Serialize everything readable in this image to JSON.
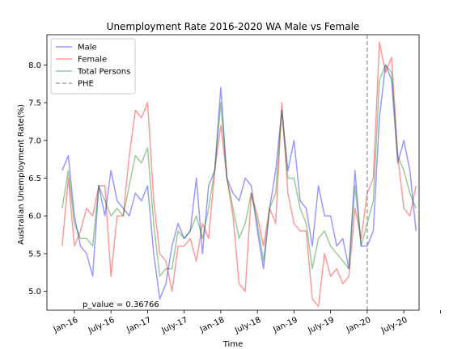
{
  "chart_data": {
    "type": "line",
    "title": "Unemployment Rate 2016-2020 WA Male vs Female",
    "xlabel": "Time",
    "ylabel": "Australian Unemployment Rate(%)",
    "x_tick_labels": [
      "Jan-16",
      "July-16",
      "Jan-17",
      "July-17",
      "Jan-18",
      "July-18",
      "Jan-19",
      "July-19",
      "Jan-20",
      "July-20"
    ],
    "x_start": "2015-11",
    "ylim": [
      4.75,
      8.4
    ],
    "yticks": [
      5.0,
      5.5,
      6.0,
      6.5,
      7.0,
      7.5,
      8.0
    ],
    "grid": false,
    "legend_position": "top-left",
    "series": [
      {
        "name": "Male",
        "color": "#0000ff",
        "values": [
          6.6,
          6.8,
          6.0,
          5.6,
          5.5,
          5.2,
          6.4,
          6.0,
          6.6,
          6.2,
          6.1,
          6.0,
          6.3,
          6.2,
          6.4,
          5.5,
          4.9,
          5.1,
          5.6,
          5.9,
          5.7,
          5.8,
          6.5,
          5.5,
          6.4,
          6.6,
          7.7,
          6.5,
          6.3,
          6.2,
          6.5,
          6.4,
          5.8,
          5.3,
          6.1,
          6.6,
          7.4,
          6.6,
          7.0,
          6.2,
          6.1,
          5.6,
          6.4,
          6.0,
          6.0,
          5.6,
          5.7,
          5.3,
          6.6,
          5.6,
          5.6,
          5.8,
          7.3,
          8.0,
          7.8,
          6.7,
          7.0,
          6.6,
          5.8
        ]
      },
      {
        "name": "Female",
        "color": "#ff0000",
        "values": [
          5.6,
          6.5,
          5.6,
          5.8,
          6.1,
          6.0,
          6.4,
          6.4,
          5.2,
          6.0,
          6.0,
          6.8,
          7.4,
          7.3,
          7.5,
          6.2,
          5.5,
          5.4,
          5.0,
          5.6,
          5.6,
          5.7,
          5.4,
          5.9,
          5.7,
          6.6,
          7.2,
          6.5,
          6.0,
          5.1,
          5.0,
          6.3,
          6.0,
          5.6,
          6.1,
          5.9,
          7.5,
          6.3,
          5.9,
          5.8,
          5.8,
          4.9,
          4.8,
          5.5,
          5.2,
          5.3,
          5.1,
          5.2,
          6.1,
          5.7,
          6.3,
          6.5,
          8.3,
          7.9,
          8.1,
          6.8,
          6.1,
          6.0,
          6.4
        ]
      },
      {
        "name": "Total Persons",
        "color": "#008000",
        "values": [
          6.1,
          6.6,
          5.9,
          5.7,
          5.7,
          5.6,
          6.4,
          6.2,
          6.0,
          6.1,
          6.0,
          6.4,
          6.8,
          6.7,
          6.9,
          5.9,
          5.2,
          5.3,
          5.3,
          5.8,
          5.7,
          5.8,
          6.0,
          5.7,
          6.1,
          6.6,
          7.5,
          6.5,
          6.1,
          5.7,
          5.9,
          6.3,
          5.9,
          5.4,
          6.1,
          6.3,
          7.4,
          6.5,
          6.5,
          6.1,
          5.9,
          5.3,
          5.7,
          5.8,
          5.6,
          5.5,
          5.4,
          5.3,
          6.4,
          5.6,
          5.9,
          6.2,
          7.8,
          8.0,
          7.9,
          6.8,
          6.6,
          6.3,
          6.1
        ]
      }
    ],
    "vline": {
      "name": "PHE",
      "x": "2020-01",
      "color": "#808080"
    },
    "annotation": "p_value = 0.36766"
  }
}
